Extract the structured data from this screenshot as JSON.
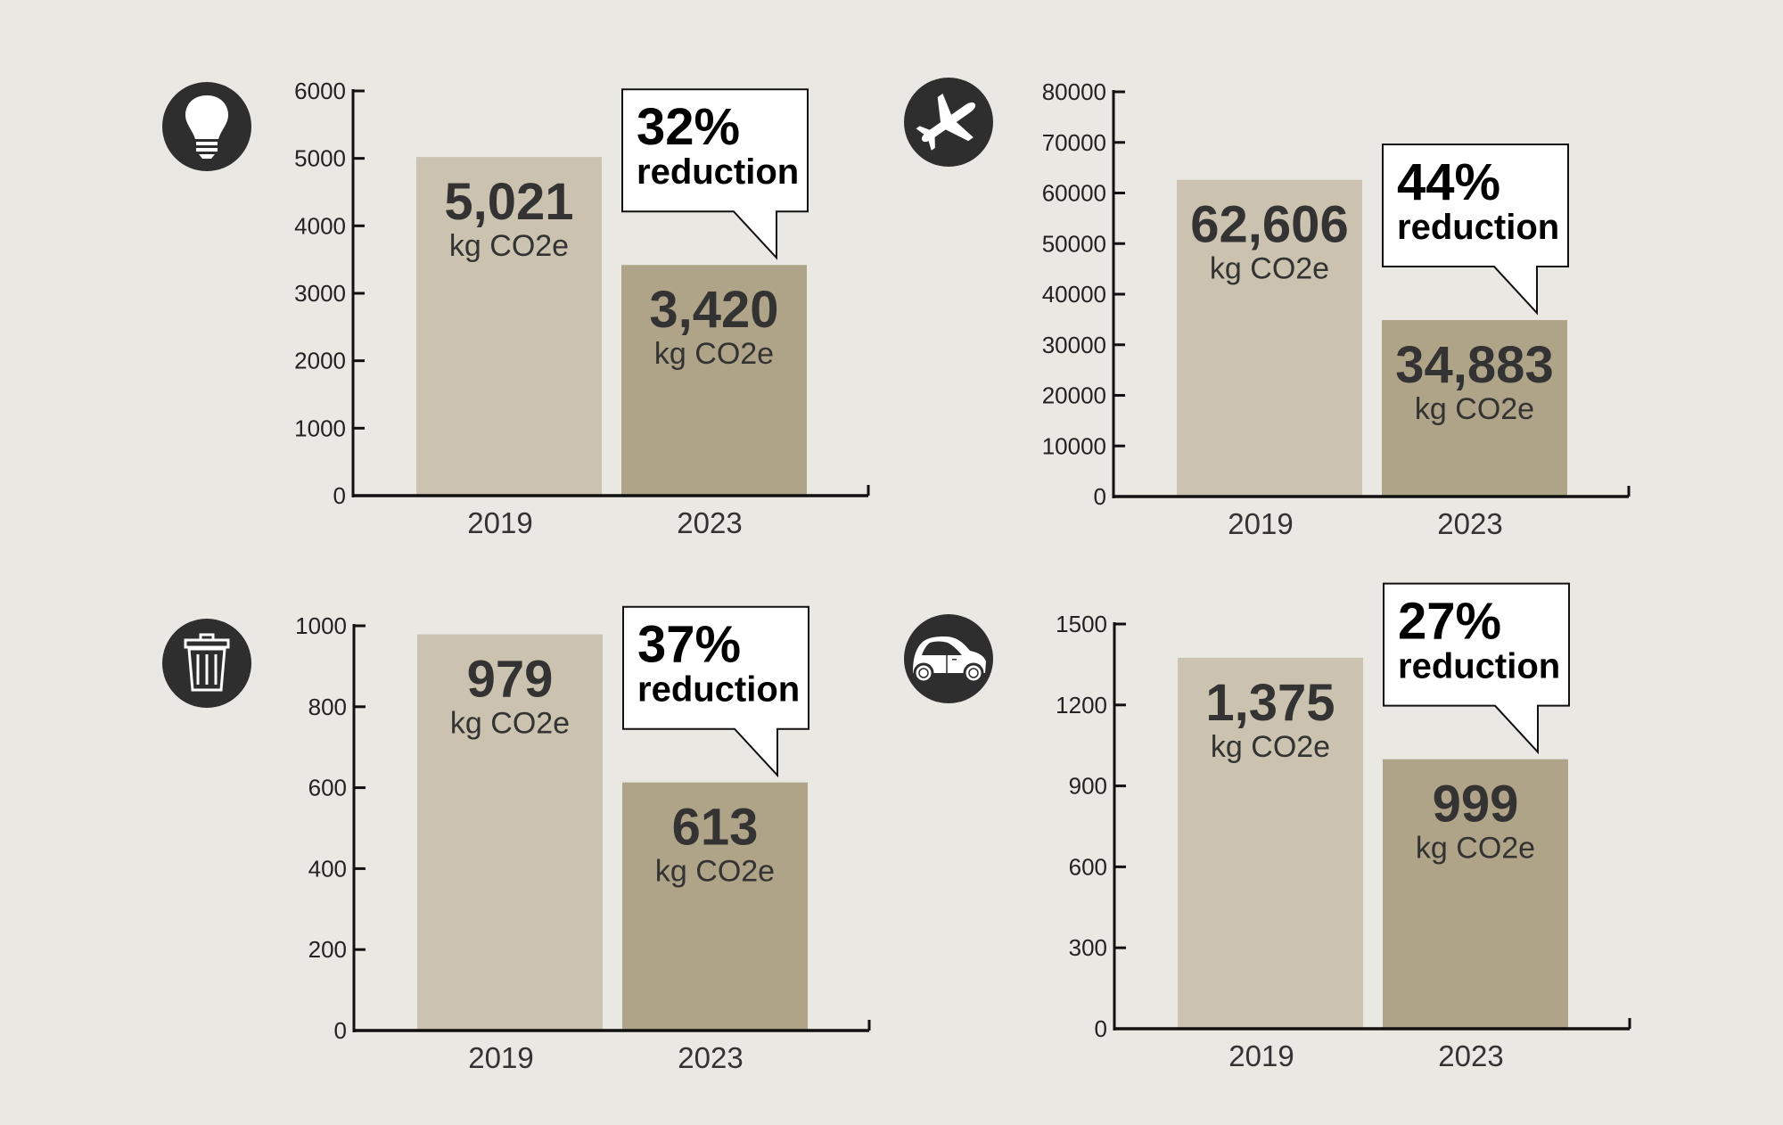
{
  "colors": {
    "background": "#eae8e3",
    "bar_2019": "#cbc3b0",
    "bar_2023": "#b0a488",
    "icon": "#2e2e2e",
    "text": "#333333"
  },
  "chart_data": [
    {
      "type": "bar",
      "icon": "lightbulb-icon",
      "categories": [
        "2019",
        "2023"
      ],
      "values": [
        5021,
        3420
      ],
      "value_labels": [
        "5,021",
        "3,420"
      ],
      "unit": "kg CO2e",
      "ylim": [
        0,
        6000
      ],
      "yticks": [
        0,
        1000,
        2000,
        3000,
        4000,
        5000,
        6000
      ],
      "callout": {
        "percent": "32%",
        "text": "reduction"
      },
      "grid": false
    },
    {
      "type": "bar",
      "icon": "airplane-icon",
      "categories": [
        "2019",
        "2023"
      ],
      "values": [
        62606,
        34883
      ],
      "value_labels": [
        "62,606",
        "34,883"
      ],
      "unit": "kg CO2e",
      "ylim": [
        0,
        80000
      ],
      "yticks": [
        0,
        10000,
        20000,
        30000,
        40000,
        50000,
        60000,
        70000,
        80000
      ],
      "callout": {
        "percent": "44%",
        "text": "reduction"
      },
      "grid": false
    },
    {
      "type": "bar",
      "icon": "trash-can-icon",
      "categories": [
        "2019",
        "2023"
      ],
      "values": [
        979,
        613
      ],
      "value_labels": [
        "979",
        "613"
      ],
      "unit": "kg CO2e",
      "ylim": [
        0,
        1000
      ],
      "yticks": [
        0,
        200,
        400,
        600,
        800,
        1000
      ],
      "callout": {
        "percent": "37%",
        "text": "reduction"
      },
      "grid": false
    },
    {
      "type": "bar",
      "icon": "car-icon",
      "categories": [
        "2019",
        "2023"
      ],
      "values": [
        1375,
        999
      ],
      "value_labels": [
        "1,375",
        "999"
      ],
      "unit": "kg CO2e",
      "ylim": [
        0,
        1500
      ],
      "yticks": [
        0,
        300,
        600,
        900,
        1200,
        1500
      ],
      "callout": {
        "percent": "27%",
        "text": "reduction"
      },
      "grid": false
    }
  ]
}
